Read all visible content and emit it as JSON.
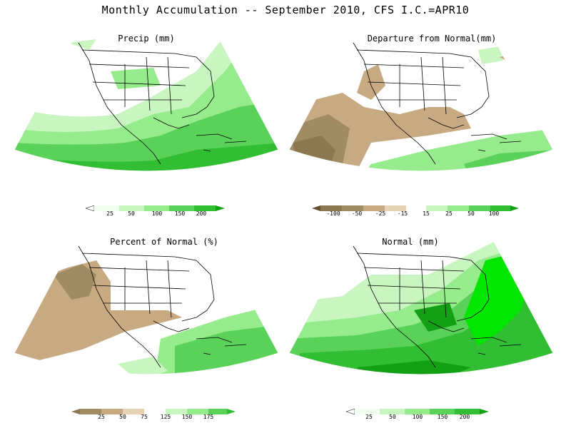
{
  "title": "Monthly Accumulation -- September 2010, CFS I.C.=APR10",
  "palette": {
    "green1": "#f0fff0",
    "green2": "#c8f5c0",
    "green3": "#96eb8c",
    "green4": "#5ad25a",
    "green5": "#32be32",
    "green6": "#14a014",
    "green7": "#00e600",
    "brown1": "#8c7850",
    "brown2": "#a08c64",
    "brown3": "#c8aa82",
    "land_outline": "#000000",
    "white": "#ffffff"
  },
  "panels": [
    {
      "id": "precip",
      "title": "Precip (mm)",
      "colorbar": {
        "labels": [
          "25",
          "50",
          "100",
          "150",
          "200"
        ]
      }
    },
    {
      "id": "departure",
      "title": "Departure from Normal(mm)",
      "colorbar": {
        "labels": [
          "-100",
          "-50",
          "-25",
          "-15",
          "15",
          "25",
          "50",
          "100"
        ]
      }
    },
    {
      "id": "percent",
      "title": "Percent of Normal (%)",
      "colorbar": {
        "labels": [
          "25",
          "50",
          "75",
          "125",
          "150",
          "175"
        ]
      }
    },
    {
      "id": "normal",
      "title": "Normal (mm)",
      "colorbar": {
        "labels": [
          "25",
          "50",
          "100",
          "150",
          "200"
        ]
      }
    }
  ]
}
